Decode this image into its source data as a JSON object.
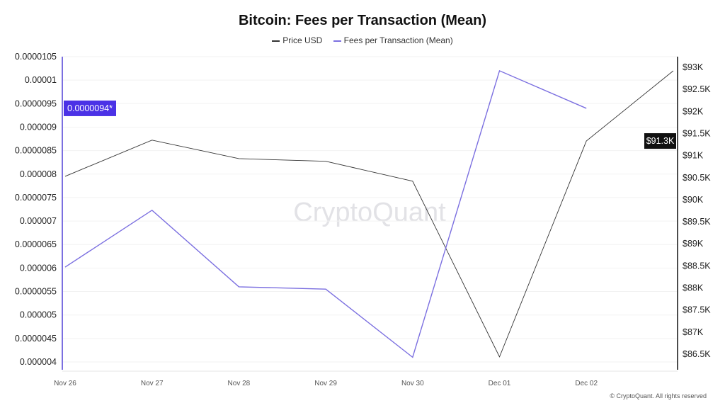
{
  "chart_data": {
    "type": "line",
    "title": "Bitcoin: Fees per Transaction (Mean)",
    "categories": [
      "Nov 26",
      "Nov 27",
      "Nov 28",
      "Nov 29",
      "Nov 30",
      "Dec 01",
      "Dec 02",
      ""
    ],
    "series": [
      {
        "name": "Price USD",
        "axis": "right",
        "color": "#333333",
        "values": [
          90530,
          91350,
          90930,
          90870,
          90420,
          86440,
          91330,
          92920
        ]
      },
      {
        "name": "Fees per Transaction (Mean)",
        "axis": "left",
        "color": "#7b6fe0",
        "values": [
          6.02e-06,
          7.23e-06,
          5.6e-06,
          5.55e-06,
          4.1e-06,
          1.02e-05,
          9.4e-06,
          null
        ]
      }
    ],
    "left_axis": {
      "ticks": [
        "0.0000105",
        "0.00001",
        "0.0000095",
        "0.000009",
        "0.0000085",
        "0.000008",
        "0.0000075",
        "0.000007",
        "0.0000065",
        "0.000006",
        "0.0000055",
        "0.000005",
        "0.0000045",
        "0.000004"
      ],
      "range": [
        4e-06,
        1.05e-05
      ],
      "highlight_label": "0.0000094*",
      "highlight_value": 9.4e-06
    },
    "right_axis": {
      "ticks": [
        "$93K",
        "$92.5K",
        "$92K",
        "$91.5K",
        "$91K",
        "$90.5K",
        "$90K",
        "$89.5K",
        "$89K",
        "$88.5K",
        "$88K",
        "$87.5K",
        "$87K",
        "$86.5K"
      ],
      "range": [
        86500,
        93000
      ],
      "highlight_label": "$91.3K",
      "highlight_value": 91330
    },
    "grid": true,
    "legend_position": "top-center",
    "highlight_color": "#4b32e6"
  },
  "watermark": "CryptoQuant",
  "footer": "© CryptoQuant. All rights reserved"
}
